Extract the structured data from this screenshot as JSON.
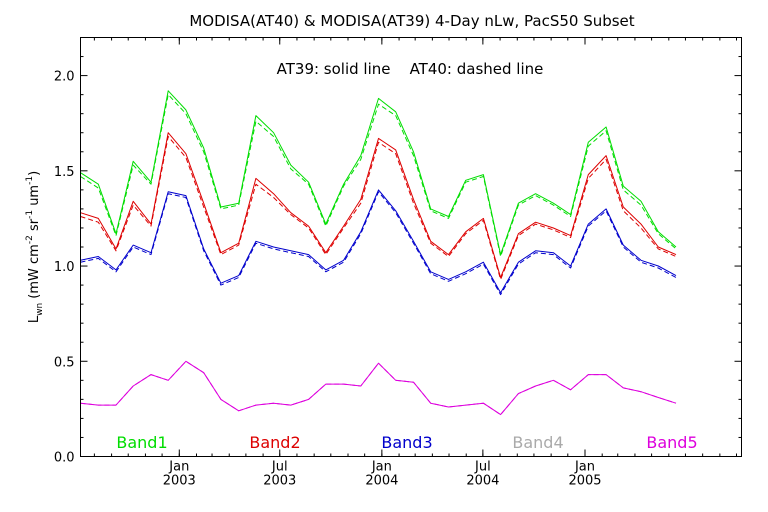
{
  "chart_data": {
    "type": "line",
    "title": "MODISA(AT40) & MODISA(AT39) 4-Day nLw, PacS50 Subset",
    "annotation": "AT39: solid line    AT40: dashed line",
    "ylabel": "L_wn (mW cm^-2 sr^-1 um^-1)",
    "ylabel_parts": {
      "main": "L",
      "sub": "wn",
      "units": "(mW cm",
      "e1": "-2",
      "sr": " sr",
      "e2": "-1",
      "um": " um",
      "e3": "-1",
      "close": ")"
    },
    "xlabel": "",
    "xlim": [
      "2002-07-07",
      "2005-10-10"
    ],
    "ylim": [
      0.0,
      2.2
    ],
    "yticks": [
      0.0,
      0.5,
      1.0,
      1.5,
      2.0
    ],
    "ytick_labels": [
      "0.0",
      "0.5",
      "1.0",
      "1.5",
      "2.0"
    ],
    "xticks": [
      {
        "date": "2003-01-01",
        "month": "Jan",
        "year": "2003"
      },
      {
        "date": "2003-07-01",
        "month": "Jul",
        "year": "2003"
      },
      {
        "date": "2004-01-01",
        "month": "Jan",
        "year": "2004"
      },
      {
        "date": "2004-07-01",
        "month": "Jul",
        "year": "2004"
      },
      {
        "date": "2005-01-01",
        "month": "Jan",
        "year": "2005"
      }
    ],
    "legend_position": "bottom",
    "x": [
      "2002-07-07",
      "2002-08-08",
      "2002-09-09",
      "2002-10-10",
      "2002-11-11",
      "2002-12-12",
      "2003-01-13",
      "2003-02-14",
      "2003-03-17",
      "2003-04-18",
      "2003-05-19",
      "2003-06-20",
      "2003-07-21",
      "2003-08-22",
      "2003-09-22",
      "2003-10-24",
      "2003-11-24",
      "2003-12-26",
      "2004-01-26",
      "2004-02-27",
      "2004-03-29",
      "2004-04-30",
      "2004-05-31",
      "2004-07-02",
      "2004-08-02",
      "2004-09-03",
      "2004-10-04",
      "2004-11-05",
      "2004-12-06",
      "2005-01-07",
      "2005-02-08",
      "2005-03-11",
      "2005-04-12",
      "2005-05-13",
      "2005-06-14"
    ],
    "series": [
      {
        "name": "Band1",
        "color": "#00dd00",
        "solid": [
          1.49,
          1.43,
          1.17,
          1.55,
          1.44,
          1.92,
          1.82,
          1.62,
          1.31,
          1.33,
          1.79,
          1.7,
          1.53,
          1.44,
          1.22,
          1.43,
          1.58,
          1.88,
          1.81,
          1.6,
          1.3,
          1.26,
          1.45,
          1.48,
          1.06,
          1.33,
          1.38,
          1.33,
          1.27,
          1.65,
          1.73,
          1.42,
          1.34,
          1.18,
          1.1
        ],
        "dashed": [
          1.47,
          1.41,
          1.16,
          1.53,
          1.43,
          1.9,
          1.8,
          1.6,
          1.3,
          1.32,
          1.76,
          1.68,
          1.51,
          1.43,
          1.21,
          1.42,
          1.56,
          1.85,
          1.79,
          1.58,
          1.29,
          1.25,
          1.44,
          1.47,
          1.05,
          1.32,
          1.37,
          1.32,
          1.26,
          1.63,
          1.71,
          1.4,
          1.32,
          1.17,
          1.09
        ]
      },
      {
        "name": "Band2",
        "color": "#dd0000",
        "solid": [
          1.28,
          1.25,
          1.09,
          1.34,
          1.22,
          1.7,
          1.59,
          1.33,
          1.07,
          1.12,
          1.46,
          1.38,
          1.28,
          1.21,
          1.07,
          1.21,
          1.35,
          1.67,
          1.61,
          1.35,
          1.13,
          1.06,
          1.18,
          1.25,
          0.94,
          1.17,
          1.23,
          1.2,
          1.16,
          1.48,
          1.58,
          1.31,
          1.22,
          1.1,
          1.06
        ],
        "dashed": [
          1.26,
          1.23,
          1.08,
          1.32,
          1.21,
          1.68,
          1.57,
          1.31,
          1.06,
          1.11,
          1.43,
          1.36,
          1.27,
          1.2,
          1.06,
          1.2,
          1.33,
          1.65,
          1.59,
          1.33,
          1.12,
          1.05,
          1.17,
          1.24,
          0.93,
          1.16,
          1.22,
          1.19,
          1.15,
          1.46,
          1.56,
          1.29,
          1.2,
          1.09,
          1.05
        ]
      },
      {
        "name": "Band3",
        "color": "#0000cc",
        "solid": [
          1.03,
          1.05,
          0.98,
          1.11,
          1.07,
          1.39,
          1.37,
          1.09,
          0.91,
          0.95,
          1.13,
          1.1,
          1.08,
          1.06,
          0.98,
          1.03,
          1.18,
          1.4,
          1.29,
          1.13,
          0.97,
          0.93,
          0.97,
          1.02,
          0.86,
          1.02,
          1.08,
          1.07,
          1.0,
          1.22,
          1.3,
          1.11,
          1.03,
          1.0,
          0.95
        ],
        "dashed": [
          1.02,
          1.04,
          0.97,
          1.1,
          1.06,
          1.38,
          1.36,
          1.08,
          0.9,
          0.94,
          1.12,
          1.09,
          1.07,
          1.05,
          0.97,
          1.02,
          1.17,
          1.39,
          1.28,
          1.12,
          0.96,
          0.92,
          0.96,
          1.01,
          0.85,
          1.01,
          1.07,
          1.06,
          0.99,
          1.21,
          1.29,
          1.1,
          1.02,
          0.99,
          0.94
        ]
      },
      {
        "name": "Band4",
        "color": "#aaaaaa",
        "solid": [],
        "dashed": []
      },
      {
        "name": "Band5",
        "color": "#dd00dd",
        "solid": [
          0.28,
          0.27,
          0.27,
          0.37,
          0.43,
          0.4,
          0.5,
          0.44,
          0.3,
          0.24,
          0.27,
          0.28,
          0.27,
          0.3,
          0.38,
          0.38,
          0.37,
          0.49,
          0.4,
          0.39,
          0.28,
          0.26,
          0.27,
          0.28,
          0.22,
          0.33,
          0.37,
          0.4,
          0.35,
          0.43,
          0.43,
          0.36,
          0.34,
          0.31,
          0.28
        ],
        "dashed": [
          0.28,
          0.27,
          0.27,
          0.37,
          0.43,
          0.4,
          0.5,
          0.44,
          0.3,
          0.24,
          0.27,
          0.28,
          0.27,
          0.3,
          0.38,
          0.38,
          0.37,
          0.49,
          0.4,
          0.39,
          0.28,
          0.26,
          0.27,
          0.28,
          0.22,
          0.33,
          0.37,
          0.4,
          0.35,
          0.43,
          0.43,
          0.36,
          0.34,
          0.31,
          0.28
        ]
      }
    ]
  }
}
